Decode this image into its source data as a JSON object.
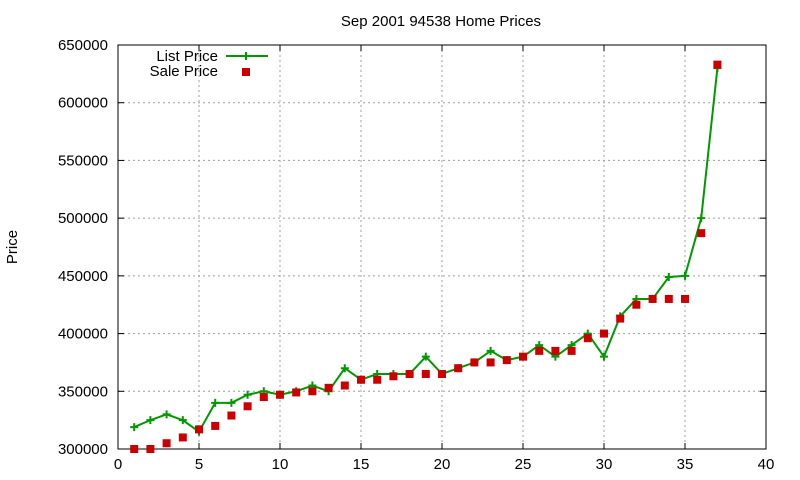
{
  "chart_data": {
    "type": "line",
    "title": "Sep 2001 94538 Home Prices",
    "xlabel": "",
    "ylabel": "Price",
    "xlim": [
      0,
      40
    ],
    "ylim": [
      300000,
      650000
    ],
    "xticks": [
      0,
      5,
      10,
      15,
      20,
      25,
      30,
      35,
      40
    ],
    "yticks": [
      300000,
      350000,
      400000,
      450000,
      500000,
      550000,
      600000,
      650000
    ],
    "grid": true,
    "legend_position": "top-left",
    "series": [
      {
        "name": "List Price",
        "style": "lines+points",
        "color": "#009900",
        "x": [
          1,
          2,
          3,
          4,
          5,
          6,
          7,
          8,
          9,
          10,
          11,
          12,
          13,
          14,
          15,
          16,
          17,
          18,
          19,
          20,
          21,
          22,
          23,
          24,
          25,
          26,
          27,
          28,
          29,
          30,
          31,
          32,
          33,
          34,
          35,
          36,
          37
        ],
        "y": [
          319000,
          325000,
          330000,
          325000,
          315000,
          340000,
          340000,
          347000,
          350000,
          347000,
          350000,
          355000,
          350000,
          370000,
          360000,
          365000,
          365000,
          365000,
          380000,
          365000,
          370000,
          375000,
          385000,
          377000,
          380000,
          390000,
          380000,
          390000,
          400000,
          380000,
          415000,
          430000,
          430000,
          449000,
          450000,
          500000,
          630000
        ]
      },
      {
        "name": "Sale Price",
        "style": "points",
        "color": "#cc0000",
        "x": [
          1,
          2,
          3,
          4,
          5,
          6,
          7,
          8,
          9,
          10,
          11,
          12,
          13,
          14,
          15,
          16,
          17,
          18,
          19,
          20,
          21,
          22,
          23,
          24,
          25,
          26,
          27,
          28,
          29,
          30,
          31,
          32,
          33,
          34,
          35,
          36,
          37
        ],
        "y": [
          300000,
          300000,
          305000,
          310000,
          317000,
          320000,
          329000,
          337000,
          345000,
          347000,
          349000,
          350000,
          353000,
          355000,
          360000,
          360000,
          363000,
          365000,
          365000,
          365000,
          370000,
          375000,
          375000,
          377000,
          380000,
          385000,
          385000,
          385000,
          396000,
          400000,
          413000,
          425000,
          430000,
          430000,
          430000,
          487000,
          633000
        ]
      }
    ]
  }
}
